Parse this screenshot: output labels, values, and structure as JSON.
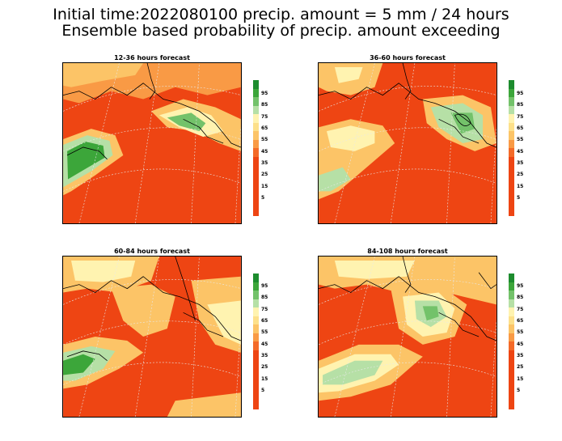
{
  "title_line1": "Initial time:2022080100 precip. amount =  5 mm / 24 hours",
  "title_line2": "Ensemble based probability of precip. amount exceeding",
  "panels": [
    {
      "title": "12-36 hours forecast"
    },
    {
      "title": "36-60 hours forecast"
    },
    {
      "title": "60-84 hours forecast"
    },
    {
      "title": "84-108 hours forecast"
    }
  ],
  "colorbar": {
    "labels": [
      "95",
      "85",
      "75",
      "65",
      "55",
      "45",
      "35",
      "25",
      "15",
      "5"
    ],
    "colors": [
      "#1d8c2e",
      "#3ca63a",
      "#73c26a",
      "#b6e0a6",
      "#fff3b0",
      "#fde08a",
      "#fcc467",
      "#f99a45",
      "#f46a28",
      "#ee4513"
    ]
  },
  "colors": {
    "low_prob": "#ee4513",
    "grid": "#d8d8d8",
    "coast": "#000000"
  }
}
